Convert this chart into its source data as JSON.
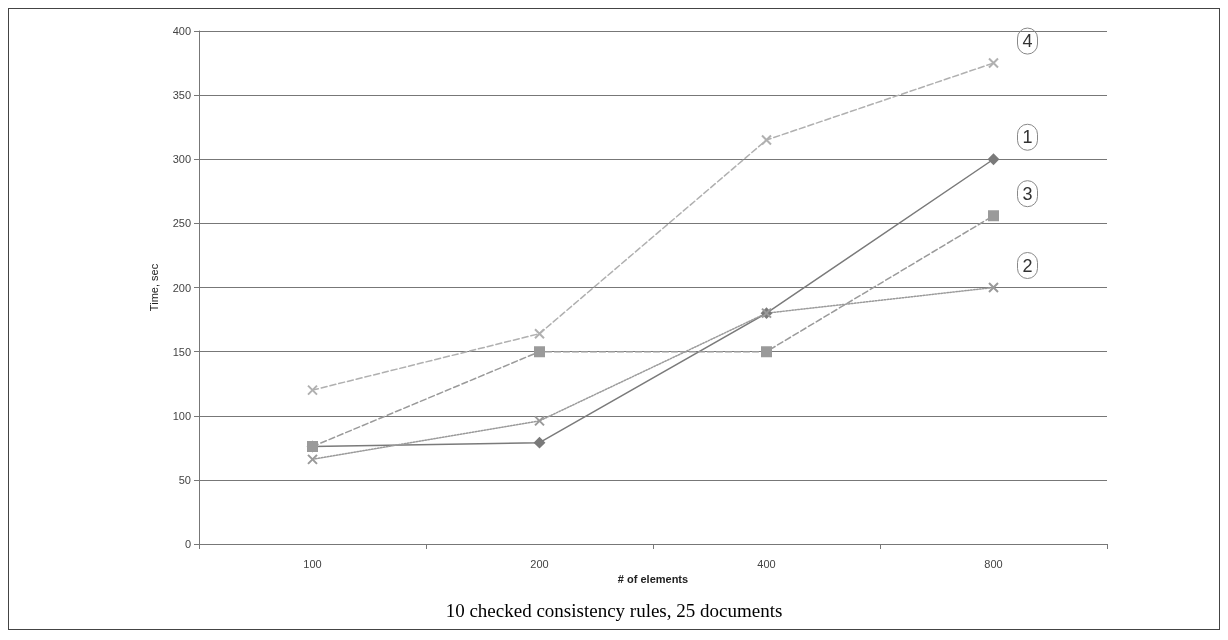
{
  "chart_data": {
    "type": "line",
    "title": "10 checked consistency rules, 25 documents",
    "xlabel": "# of elements",
    "ylabel": "Time, sec",
    "categories": [
      "100",
      "200",
      "400",
      "800"
    ],
    "series": [
      {
        "name": "1",
        "color": "#7a7a7a",
        "values": [
          76,
          79,
          180,
          300
        ],
        "marker": "diamond",
        "line_style": "solid"
      },
      {
        "name": "2",
        "color": "#9a9a9a",
        "values": [
          66,
          96,
          180,
          200
        ],
        "marker": "cross",
        "line_style": "dotted"
      },
      {
        "name": "3",
        "color": "#9a9a9a",
        "values": [
          76,
          150,
          150,
          256
        ],
        "marker": "square",
        "line_style": "dashed"
      },
      {
        "name": "4",
        "color": "#b0b0b0",
        "values": [
          120,
          164,
          315,
          375
        ],
        "marker": "cross",
        "line_style": "dashed"
      }
    ],
    "ylim": [
      0,
      400
    ],
    "yticks": [
      0,
      50,
      100,
      150,
      200,
      250,
      300,
      350,
      400
    ],
    "grid": "y"
  }
}
